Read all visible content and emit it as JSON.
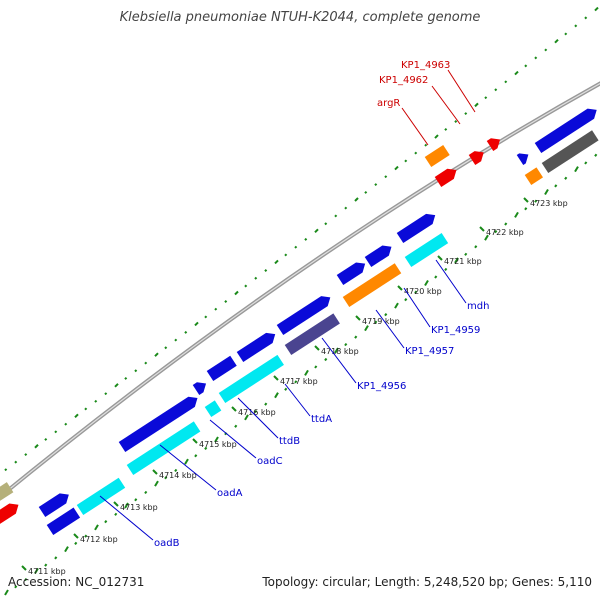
{
  "title": "Klebsiella pneumoniae NTUH-K2044, complete genome",
  "footer": {
    "accession": "Accession: NC_012731",
    "summary": "Topology: circular; Length: 5,248,520 bp; Genes: 5,110"
  },
  "colors": {
    "blue_gene": "#0a0ad8",
    "cyan_gene": "#00e8f0",
    "orange_gene": "#ff8800",
    "red_gene": "#ee0000",
    "slate_gene": "#4a4490",
    "gray_gene": "#555555",
    "olive_gene": "#b5b07a",
    "backbone": "#888888",
    "tick_green": "#1a8a1a",
    "label_blue": "#0000cc",
    "label_red": "#cc0000"
  },
  "scale_labels": [
    "4711 kbp",
    "4712 kbp",
    "4713 kbp",
    "4714 kbp",
    "4715 kbp",
    "4716 kbp",
    "4717 kbp",
    "4718 kbp",
    "4719 kbp",
    "4720 kbp",
    "4721 kbp",
    "4722 kbp",
    "4723 kbp"
  ],
  "gene_labels": [
    {
      "text": "oadB",
      "color": "blue"
    },
    {
      "text": "oadA",
      "color": "blue"
    },
    {
      "text": "oadC",
      "color": "blue"
    },
    {
      "text": "ttdB",
      "color": "blue"
    },
    {
      "text": "ttdA",
      "color": "blue"
    },
    {
      "text": "KP1_4956",
      "color": "blue"
    },
    {
      "text": "KP1_4957",
      "color": "blue"
    },
    {
      "text": "KP1_4959",
      "color": "blue"
    },
    {
      "text": "mdh",
      "color": "blue"
    },
    {
      "text": "argR",
      "color": "red"
    },
    {
      "text": "KP1_4962",
      "color": "red"
    },
    {
      "text": "KP1_4963",
      "color": "red"
    }
  ]
}
